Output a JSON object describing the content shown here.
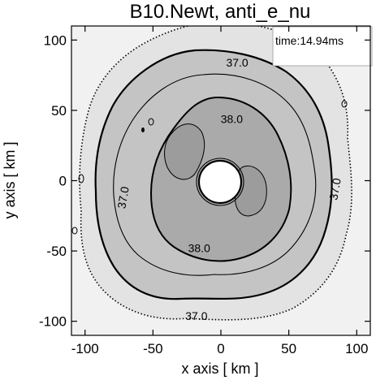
{
  "chart_data": {
    "type": "contour",
    "title": "B10.Newt, anti_e_nu",
    "xlabel": "x axis [ km ]",
    "ylabel": "y axis [ km ]",
    "xlim": [
      -110,
      110
    ],
    "ylim": [
      -110,
      110
    ],
    "x_ticks": [
      -100,
      -50,
      0,
      50,
      100
    ],
    "y_ticks": [
      -100,
      -50,
      0,
      50,
      100
    ],
    "time_label": "time:14.94ms",
    "levels": [
      37.0,
      38.0
    ],
    "contour_labels": [
      {
        "text": "37.0",
        "x": 12,
        "y": 84
      },
      {
        "text": "38.0",
        "x": 8,
        "y": 44
      },
      {
        "text": "37.0",
        "x": -72,
        "y": -12
      },
      {
        "text": "37.0",
        "x": 84,
        "y": -6
      },
      {
        "text": "38.0",
        "x": -16,
        "y": -48
      },
      {
        "text": "37.0",
        "x": -18,
        "y": -96
      }
    ],
    "shading": [
      {
        "name": "outer",
        "color": "#e6e6e6",
        "radius": 95
      },
      {
        "name": "mid",
        "color": "#c6c6c6",
        "radius": 72
      },
      {
        "name": "inner",
        "color": "#a9a9a9",
        "radius": 40
      },
      {
        "name": "core",
        "color": "#ffffff",
        "radius": 13
      }
    ]
  }
}
